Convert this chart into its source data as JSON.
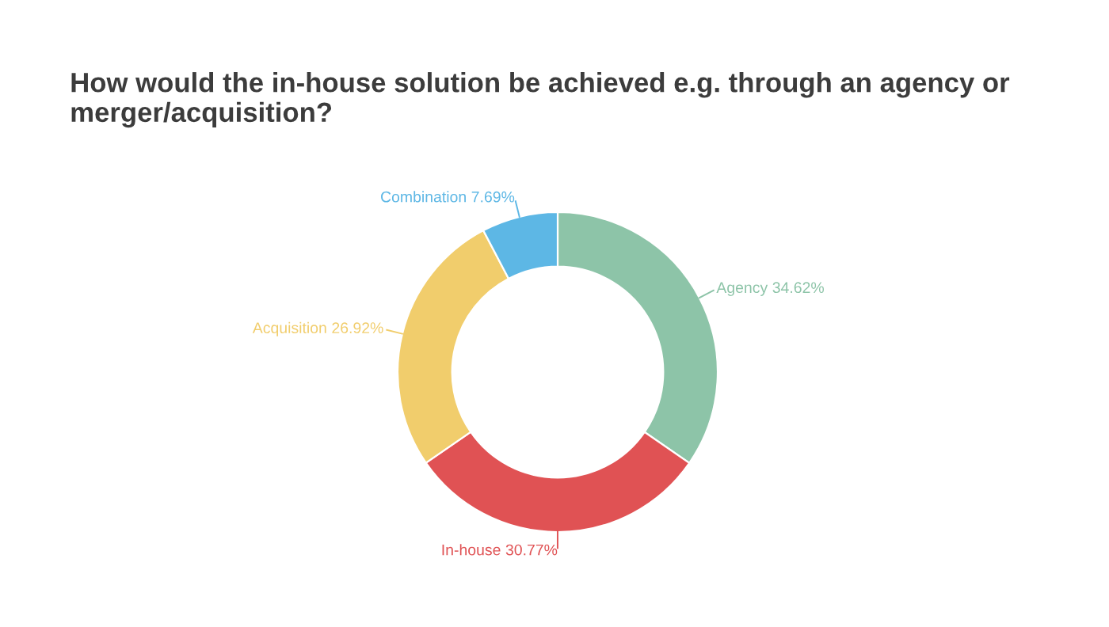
{
  "chart_data": {
    "type": "donut",
    "title": "How would the in-house solution be achieved e.g. through an agency or merger/acquisition?",
    "categories": [
      "Agency",
      "In-house",
      "Acquisition",
      "Combination"
    ],
    "values": [
      34.62,
      30.77,
      26.92,
      7.69
    ],
    "colors": [
      "#8dc4a8",
      "#e05254",
      "#f1cd6c",
      "#5db7e5"
    ],
    "value_labels": [
      "34.62%",
      "30.77%",
      "26.92%",
      "7.69%"
    ],
    "legend": false
  }
}
